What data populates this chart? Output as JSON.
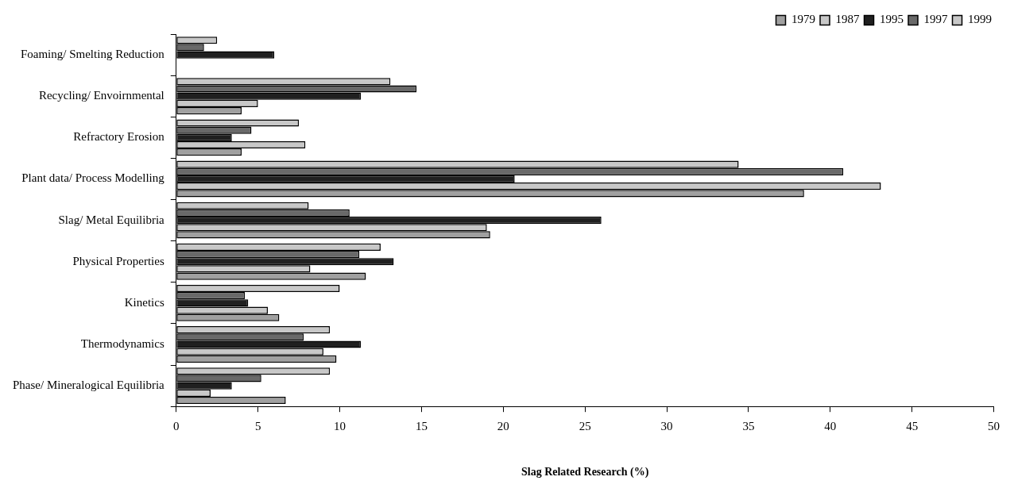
{
  "chart_data": {
    "type": "bar",
    "orientation": "horizontal",
    "xlabel": "Slag Related Research (%)",
    "categories": [
      "Foaming/ Smelting Reduction",
      "Recycling/ Envoirnmental",
      "Refractory Erosion",
      "Plant data/ Process Modelling",
      "Slag/ Metal Equilibria",
      "Physical Properties",
      "Kinetics",
      "Thermodynamics",
      "Phase/ Mineralogical Equilibria"
    ],
    "series": [
      {
        "name": "1979",
        "color": "#a0a0a0",
        "values": [
          null,
          4.0,
          4.0,
          38.4,
          19.2,
          11.6,
          6.3,
          9.8,
          6.7
        ]
      },
      {
        "name": "1987",
        "color": "#c8c8c8",
        "values": [
          null,
          5.0,
          7.9,
          43.1,
          19.0,
          8.2,
          5.6,
          9.0,
          2.1
        ]
      },
      {
        "name": "1995",
        "color": "#202020",
        "values": [
          6.0,
          11.3,
          3.4,
          20.7,
          26.0,
          13.3,
          4.4,
          11.3,
          3.4
        ]
      },
      {
        "name": "1997",
        "color": "#696969",
        "values": [
          1.7,
          14.7,
          4.6,
          40.8,
          10.6,
          11.2,
          4.2,
          7.8,
          5.2
        ]
      },
      {
        "name": "1999",
        "color": "#c8c8c8",
        "values": [
          2.5,
          13.1,
          7.5,
          34.4,
          8.1,
          12.5,
          10.0,
          9.4,
          9.4
        ]
      }
    ],
    "xlim": [
      0,
      50
    ],
    "xticks": [
      0,
      5,
      10,
      15,
      20,
      25,
      30,
      35,
      40,
      45,
      50
    ],
    "grid": false,
    "legend": "top right"
  }
}
